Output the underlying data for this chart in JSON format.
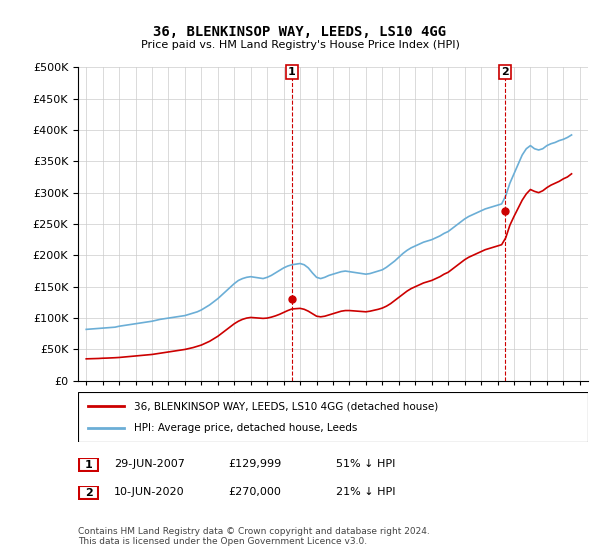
{
  "title": "36, BLENKINSOP WAY, LEEDS, LS10 4GG",
  "subtitle": "Price paid vs. HM Land Registry's House Price Index (HPI)",
  "legend_line1": "36, BLENKINSOP WAY, LEEDS, LS10 4GG (detached house)",
  "legend_line2": "HPI: Average price, detached house, Leeds",
  "footnote": "Contains HM Land Registry data © Crown copyright and database right 2024.\nThis data is licensed under the Open Government Licence v3.0.",
  "annotation1_label": "1",
  "annotation1_date": "29-JUN-2007",
  "annotation1_price": "£129,999",
  "annotation1_hpi": "51% ↓ HPI",
  "annotation2_label": "2",
  "annotation2_date": "10-JUN-2020",
  "annotation2_price": "£270,000",
  "annotation2_hpi": "21% ↓ HPI",
  "sale1_x": 2007.5,
  "sale1_y": 129999,
  "sale2_x": 2020.45,
  "sale2_y": 270000,
  "hpi_color": "#6baed6",
  "price_color": "#cc0000",
  "background_color": "#ffffff",
  "grid_color": "#cccccc",
  "ylim": [
    0,
    500000
  ],
  "yticks": [
    0,
    50000,
    100000,
    150000,
    200000,
    250000,
    300000,
    350000,
    400000,
    450000,
    500000
  ],
  "xlim_start": 1994.5,
  "xlim_end": 2025.5,
  "hpi_data": {
    "years": [
      1995,
      1995.25,
      1995.5,
      1995.75,
      1996,
      1996.25,
      1996.5,
      1996.75,
      1997,
      1997.25,
      1997.5,
      1997.75,
      1998,
      1998.25,
      1998.5,
      1998.75,
      1999,
      1999.25,
      1999.5,
      1999.75,
      2000,
      2000.25,
      2000.5,
      2000.75,
      2001,
      2001.25,
      2001.5,
      2001.75,
      2002,
      2002.25,
      2002.5,
      2002.75,
      2003,
      2003.25,
      2003.5,
      2003.75,
      2004,
      2004.25,
      2004.5,
      2004.75,
      2005,
      2005.25,
      2005.5,
      2005.75,
      2006,
      2006.25,
      2006.5,
      2006.75,
      2007,
      2007.25,
      2007.5,
      2007.75,
      2008,
      2008.25,
      2008.5,
      2008.75,
      2009,
      2009.25,
      2009.5,
      2009.75,
      2010,
      2010.25,
      2010.5,
      2010.75,
      2011,
      2011.25,
      2011.5,
      2011.75,
      2012,
      2012.25,
      2012.5,
      2012.75,
      2013,
      2013.25,
      2013.5,
      2013.75,
      2014,
      2014.25,
      2014.5,
      2014.75,
      2015,
      2015.25,
      2015.5,
      2015.75,
      2016,
      2016.25,
      2016.5,
      2016.75,
      2017,
      2017.25,
      2017.5,
      2017.75,
      2018,
      2018.25,
      2018.5,
      2018.75,
      2019,
      2019.25,
      2019.5,
      2019.75,
      2020,
      2020.25,
      2020.5,
      2020.75,
      2021,
      2021.25,
      2021.5,
      2021.75,
      2022,
      2022.25,
      2022.5,
      2022.75,
      2023,
      2023.25,
      2023.5,
      2023.75,
      2024,
      2024.25,
      2024.5
    ],
    "values": [
      82000,
      82500,
      83000,
      83500,
      84000,
      84500,
      85000,
      85500,
      87000,
      88000,
      89000,
      90000,
      91000,
      92000,
      93000,
      94000,
      95000,
      96500,
      98000,
      99000,
      100000,
      101000,
      102000,
      103000,
      104000,
      106000,
      108000,
      110000,
      113000,
      117000,
      121000,
      126000,
      131000,
      137000,
      143000,
      149000,
      155000,
      160000,
      163000,
      165000,
      166000,
      165000,
      164000,
      163000,
      165000,
      168000,
      172000,
      176000,
      180000,
      183000,
      185000,
      186000,
      187000,
      185000,
      180000,
      172000,
      165000,
      163000,
      165000,
      168000,
      170000,
      172000,
      174000,
      175000,
      174000,
      173000,
      172000,
      171000,
      170000,
      171000,
      173000,
      175000,
      177000,
      181000,
      186000,
      191000,
      197000,
      203000,
      208000,
      212000,
      215000,
      218000,
      221000,
      223000,
      225000,
      228000,
      231000,
      235000,
      238000,
      243000,
      248000,
      253000,
      258000,
      262000,
      265000,
      268000,
      271000,
      274000,
      276000,
      278000,
      280000,
      282000,
      295000,
      315000,
      330000,
      345000,
      360000,
      370000,
      375000,
      370000,
      368000,
      370000,
      375000,
      378000,
      380000,
      383000,
      385000,
      388000,
      392000
    ]
  },
  "price_data": {
    "years": [
      1995,
      1995.25,
      1995.5,
      1995.75,
      1996,
      1996.25,
      1996.5,
      1996.75,
      1997,
      1997.25,
      1997.5,
      1997.75,
      1998,
      1998.25,
      1998.5,
      1998.75,
      1999,
      1999.25,
      1999.5,
      1999.75,
      2000,
      2000.25,
      2000.5,
      2000.75,
      2001,
      2001.25,
      2001.5,
      2001.75,
      2002,
      2002.25,
      2002.5,
      2002.75,
      2003,
      2003.25,
      2003.5,
      2003.75,
      2004,
      2004.25,
      2004.5,
      2004.75,
      2005,
      2005.25,
      2005.5,
      2005.75,
      2006,
      2006.25,
      2006.5,
      2006.75,
      2007,
      2007.25,
      2007.5,
      2007.75,
      2008,
      2008.25,
      2008.5,
      2008.75,
      2009,
      2009.25,
      2009.5,
      2009.75,
      2010,
      2010.25,
      2010.5,
      2010.75,
      2011,
      2011.25,
      2011.5,
      2011.75,
      2012,
      2012.25,
      2012.5,
      2012.75,
      2013,
      2013.25,
      2013.5,
      2013.75,
      2014,
      2014.25,
      2014.5,
      2014.75,
      2015,
      2015.25,
      2015.5,
      2015.75,
      2016,
      2016.25,
      2016.5,
      2016.75,
      2017,
      2017.25,
      2017.5,
      2017.75,
      2018,
      2018.25,
      2018.5,
      2018.75,
      2019,
      2019.25,
      2019.5,
      2019.75,
      2020,
      2020.25,
      2020.5,
      2020.75,
      2021,
      2021.25,
      2021.5,
      2021.75,
      2022,
      2022.25,
      2022.5,
      2022.75,
      2023,
      2023.25,
      2023.5,
      2023.75,
      2024,
      2024.25,
      2024.5
    ],
    "values": [
      35000,
      35200,
      35400,
      35600,
      36000,
      36200,
      36500,
      36800,
      37200,
      37800,
      38400,
      39000,
      39600,
      40200,
      40800,
      41400,
      42000,
      43000,
      44000,
      45000,
      46000,
      47000,
      48000,
      49000,
      50000,
      51500,
      53000,
      55000,
      57000,
      60000,
      63000,
      67000,
      71000,
      76000,
      81000,
      86000,
      91000,
      95000,
      98000,
      100000,
      101000,
      100500,
      100000,
      99500,
      100000,
      101500,
      103500,
      106000,
      109000,
      112000,
      114500,
      115000,
      115500,
      114000,
      111000,
      107000,
      103000,
      102000,
      103000,
      105000,
      107000,
      109000,
      111000,
      112000,
      112000,
      111500,
      111000,
      110500,
      110000,
      111000,
      112500,
      114000,
      116000,
      119000,
      123000,
      128000,
      133000,
      138000,
      143000,
      147000,
      150000,
      153000,
      156000,
      158000,
      160000,
      163000,
      166000,
      170000,
      173000,
      178000,
      183000,
      188000,
      193000,
      197000,
      200000,
      203000,
      206000,
      209000,
      211000,
      213000,
      215000,
      217000,
      228000,
      248000,
      262000,
      275000,
      288000,
      298000,
      305000,
      302000,
      300000,
      303000,
      308000,
      312000,
      315000,
      318000,
      322000,
      325000,
      330000
    ]
  }
}
